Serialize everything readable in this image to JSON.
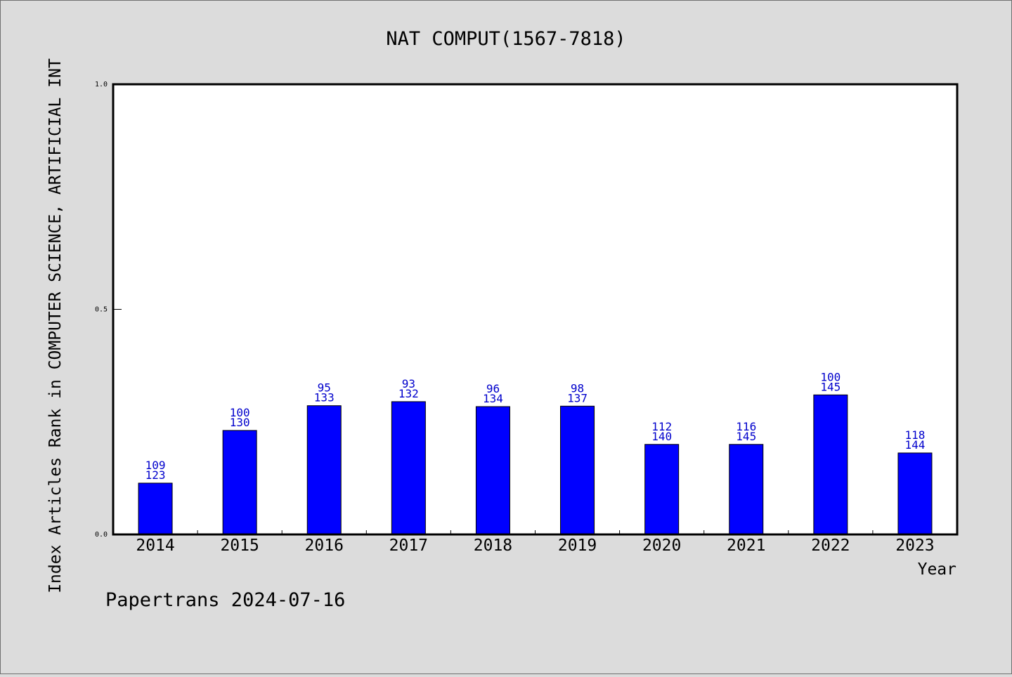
{
  "chart_data": {
    "type": "bar",
    "title": "NAT COMPUT(1567-7818)",
    "xlabel": "Year",
    "ylabel": "Index Articles Rank in COMPUTER SCIENCE, ARTIFICIAL INT",
    "ylim": [
      0,
      1.0
    ],
    "yticks": [
      "0.0",
      "0.5",
      "1.0"
    ],
    "ytick_values": [
      0,
      0.5,
      1.0
    ],
    "categories": [
      "2014",
      "2015",
      "2016",
      "2017",
      "2018",
      "2019",
      "2020",
      "2021",
      "2022",
      "2023"
    ],
    "values": [
      0.114,
      0.231,
      0.286,
      0.295,
      0.284,
      0.285,
      0.2,
      0.2,
      0.31,
      0.181
    ],
    "ranks": [
      "109",
      "100",
      "95",
      "93",
      "96",
      "98",
      "112",
      "116",
      "100",
      "118"
    ],
    "totals": [
      "123",
      "130",
      "133",
      "132",
      "134",
      "137",
      "140",
      "145",
      "145",
      "144"
    ],
    "bar_color": "#0000ff",
    "label_color": "#0000cc",
    "grid": false,
    "legend": "none"
  },
  "footer": "Papertrans 2024-07-16"
}
